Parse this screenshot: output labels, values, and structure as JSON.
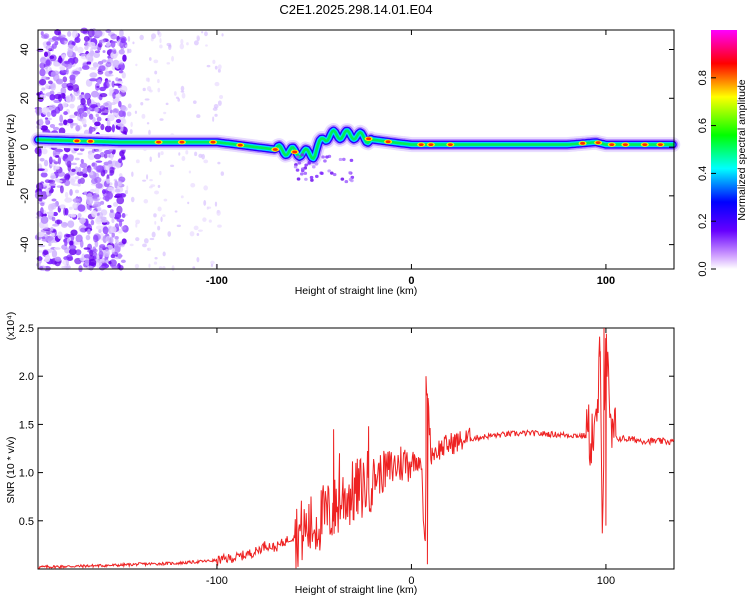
{
  "title": "C2E1.2025.298.14.01.E04",
  "chart_data": [
    {
      "type": "heatmap",
      "name": "spectrogram",
      "xlabel": "Height of straight line (km)",
      "ylabel": "Frequency (Hz)",
      "xlim": [
        -192,
        135
      ],
      "ylim": [
        -50,
        48
      ],
      "x_ticks": [
        -100,
        0,
        100
      ],
      "x_tick_labels": [
        "-100",
        "0",
        "100"
      ],
      "y_ticks": [
        40,
        20,
        0,
        -20,
        -40
      ],
      "y_tick_labels": [
        "40",
        "20",
        "0",
        "-20",
        "-40"
      ],
      "colorbar": {
        "label": "Normalized spectral amplitude",
        "range": [
          0,
          1
        ],
        "ticks": [
          0.0,
          0.2,
          0.4,
          0.6,
          0.8
        ],
        "tick_labels": [
          "0.0",
          "0.2",
          "0.4",
          "0.6",
          "0.8"
        ],
        "colors": [
          "#ffffff",
          "#9900ff",
          "#0000ff",
          "#00ffff",
          "#00ff00",
          "#ffff00",
          "#ff0000",
          "#ff00ff"
        ]
      },
      "ridge": {
        "description_x": [
          -192,
          -150,
          -120,
          -100,
          -80,
          -60,
          -50,
          -45,
          -40,
          -30,
          -20,
          -10,
          0,
          20,
          40,
          60,
          80,
          95,
          100,
          105,
          120,
          135
        ],
        "frequency": [
          3,
          2,
          2,
          2,
          0,
          -2,
          -3,
          4,
          5,
          5,
          3,
          2,
          1,
          1,
          1,
          1,
          1,
          2,
          1,
          1,
          1,
          1
        ]
      }
    },
    {
      "type": "line",
      "name": "snr",
      "xlabel": "Height of straight line (km)",
      "ylabel": "SNR (10 * v/v)",
      "y_scale_label": "(x10⁴)",
      "xlim": [
        -192,
        135
      ],
      "ylim": [
        0,
        2.5
      ],
      "x_ticks": [
        -100,
        0,
        100
      ],
      "x_tick_labels": [
        "-100",
        "0",
        "100"
      ],
      "y_ticks": [
        0.5,
        1.0,
        1.5,
        2.0,
        2.5
      ],
      "y_tick_labels": [
        "0.5",
        "1.0",
        "1.5",
        "2.0",
        "2.5"
      ],
      "color": "#ee2222",
      "series": [
        {
          "name": "SNR",
          "x": [
            -192,
            -170,
            -150,
            -140,
            -120,
            -100,
            -90,
            -80,
            -75,
            -70,
            -60,
            -50,
            -45,
            -40,
            -35,
            -30,
            -25,
            -20,
            -15,
            -10,
            -5,
            0,
            5,
            7,
            8,
            10,
            15,
            20,
            30,
            40,
            50,
            60,
            70,
            80,
            90,
            95,
            97,
            98,
            100,
            102,
            105,
            110,
            120,
            135
          ],
          "y": [
            0.02,
            0.03,
            0.04,
            0.05,
            0.06,
            0.09,
            0.12,
            0.18,
            0.25,
            0.22,
            0.35,
            0.45,
            0.55,
            0.6,
            0.75,
            0.78,
            0.85,
            0.95,
            1.0,
            1.05,
            1.1,
            1.12,
            1.15,
            0.1,
            2.0,
            1.2,
            1.25,
            1.3,
            1.35,
            1.38,
            1.4,
            1.41,
            1.4,
            1.39,
            1.38,
            1.4,
            2.2,
            0.5,
            2.55,
            1.4,
            1.36,
            1.35,
            1.33,
            1.32
          ]
        }
      ]
    }
  ]
}
